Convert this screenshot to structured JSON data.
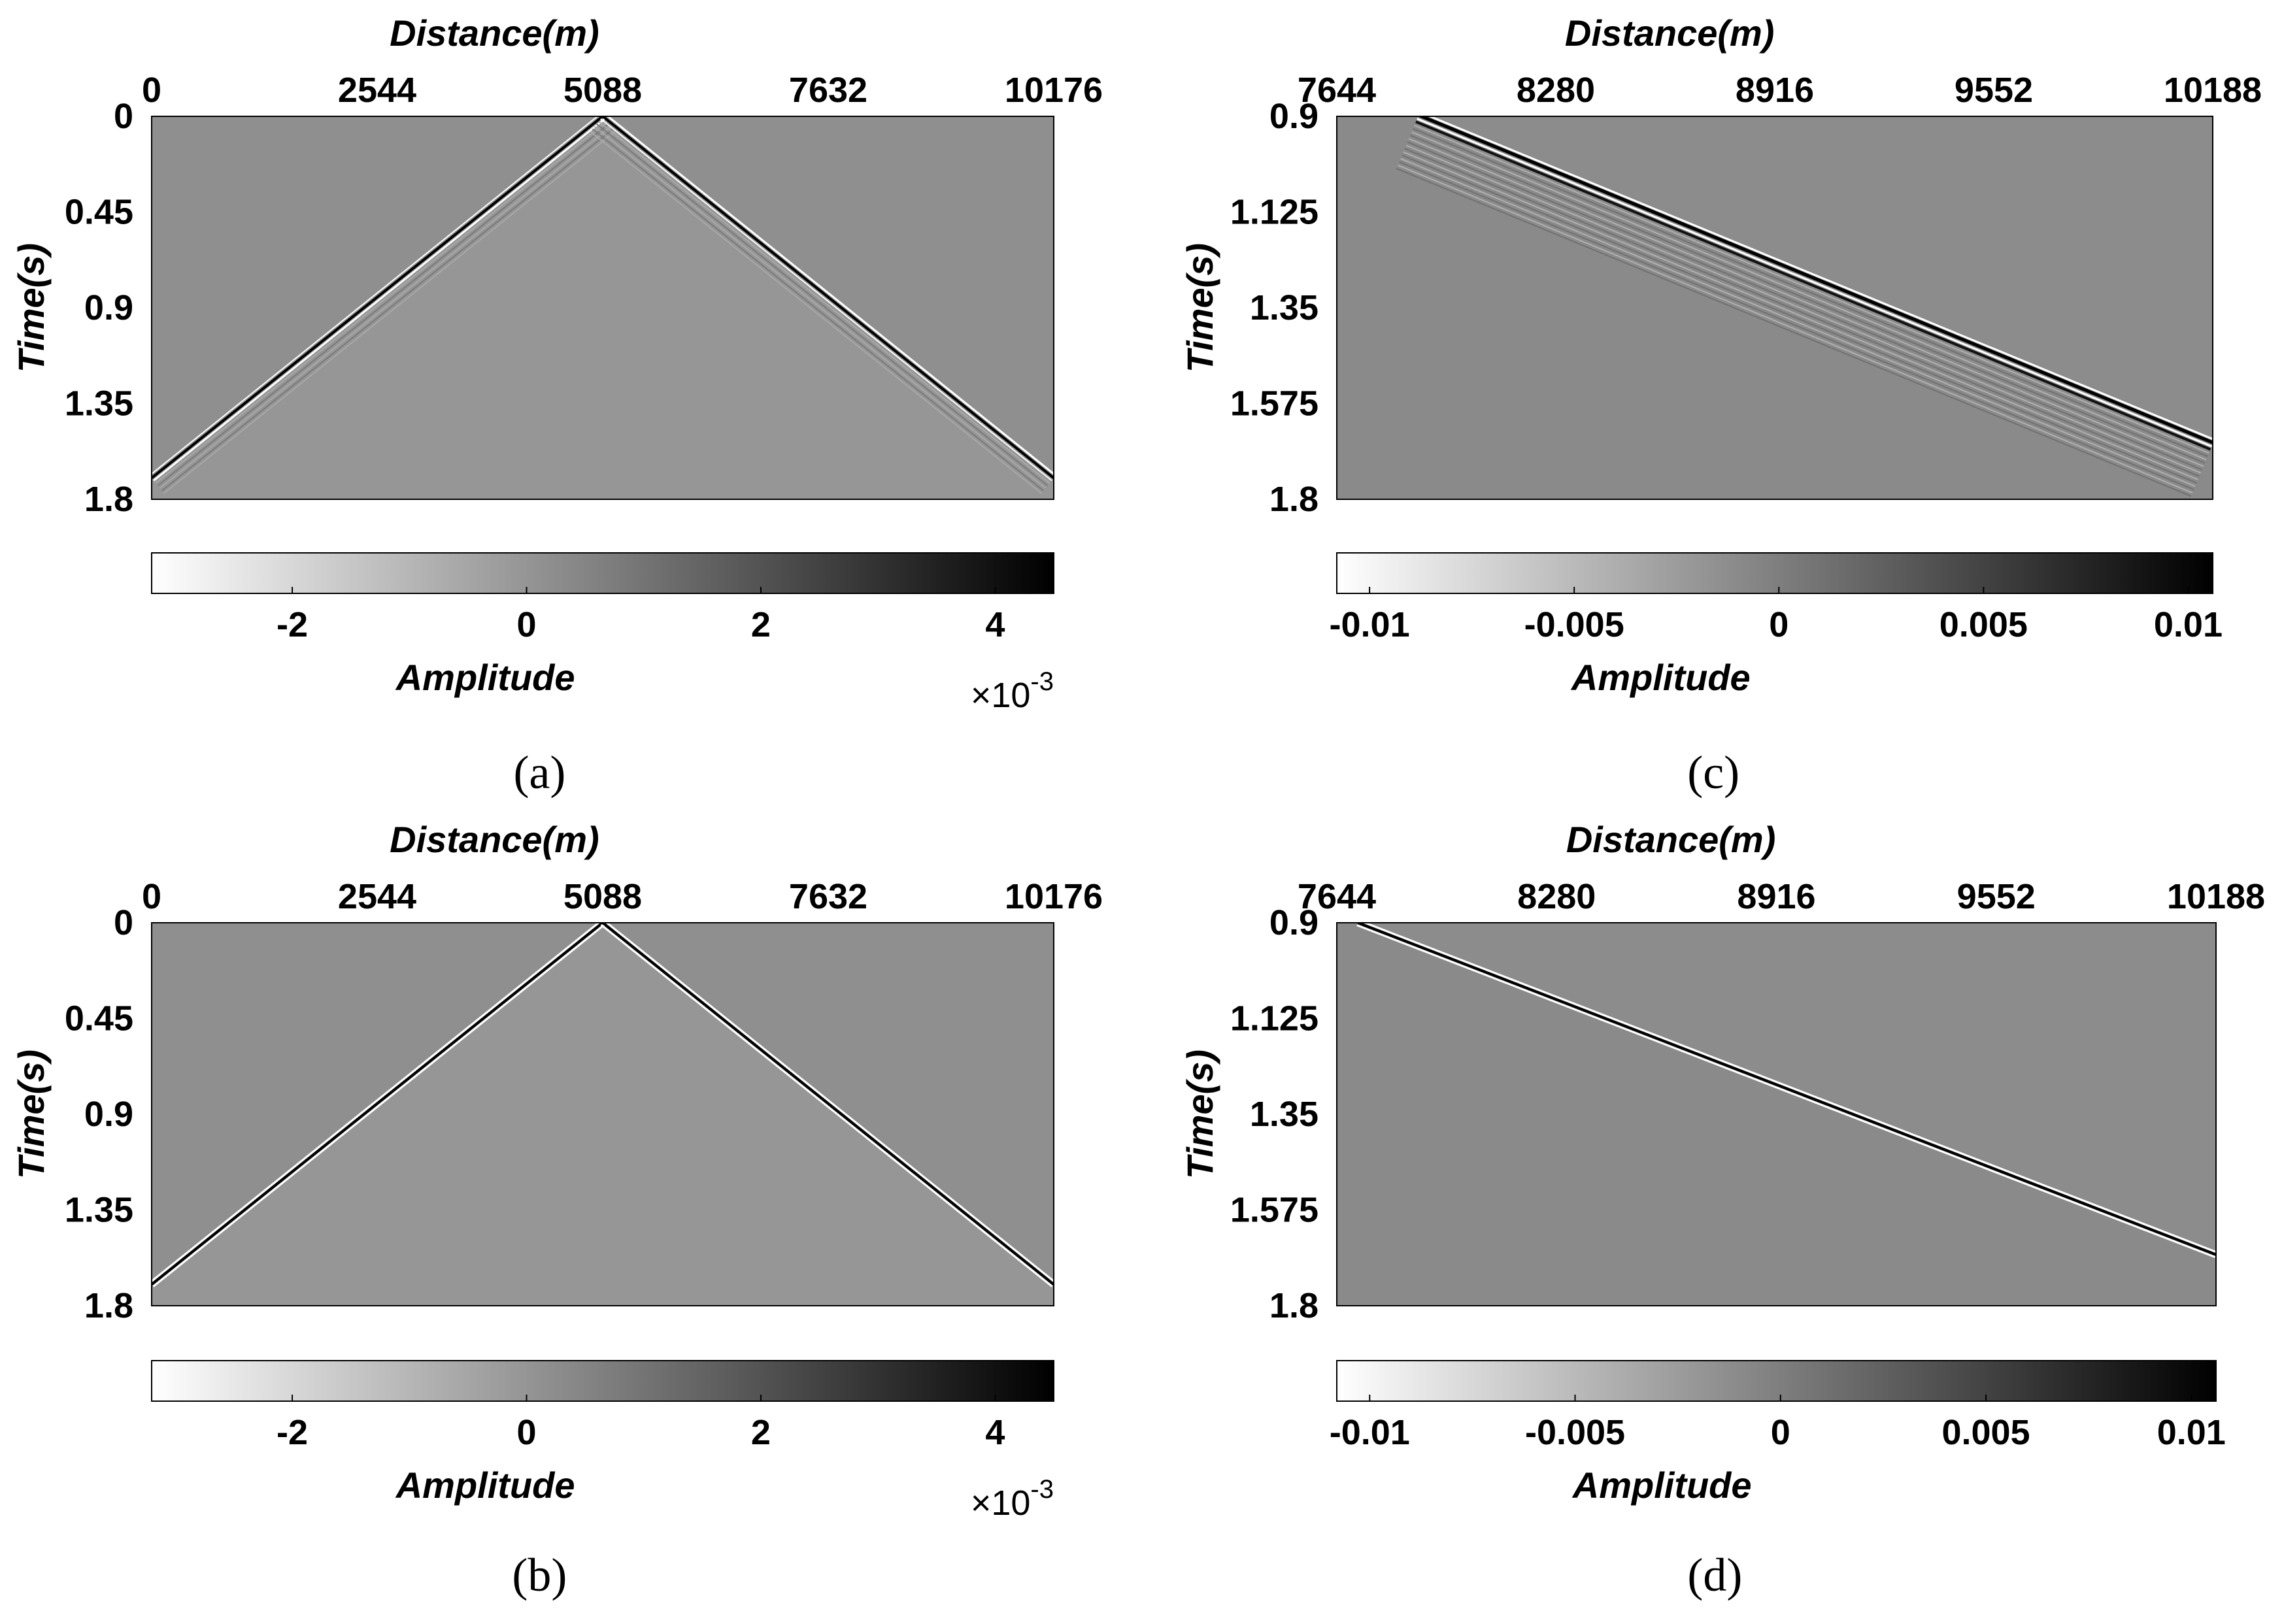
{
  "figure": {
    "background": "#ffffff"
  },
  "chart_data": [
    {
      "id": "a",
      "type": "heatmap",
      "caption": "(a)",
      "xlabel": "Distance(m)",
      "ylabel": "Time(s)",
      "xticks": [
        "0",
        "2544",
        "5088",
        "7632",
        "10176"
      ],
      "yticks": [
        "0",
        "0.45",
        "0.9",
        "1.35",
        "1.8"
      ],
      "xlim": [
        0,
        10176
      ],
      "ylim": [
        0,
        1.8
      ],
      "background_color": "#8f8f8f",
      "lower_region_color": "#969696",
      "events": [
        {
          "name": "direct-wave-left",
          "points": [
            [
              5088,
              0
            ],
            [
              0,
              1.7
            ]
          ]
        },
        {
          "name": "direct-wave-right",
          "points": [
            [
              5088,
              0
            ],
            [
              10176,
              1.7
            ]
          ]
        }
      ],
      "colorbar": {
        "label": "Amplitude",
        "range": [
          -0.0032,
          0.0045
        ],
        "ticks": [
          "-2",
          "0",
          "2",
          "4"
        ],
        "tick_values": [
          -0.002,
          0,
          0.002,
          0.004
        ],
        "multiplier": "×10",
        "multiplier_exponent": "-3"
      }
    },
    {
      "id": "b",
      "type": "heatmap",
      "caption": "(b)",
      "xlabel": "Distance(m)",
      "ylabel": "Time(s)",
      "xticks": [
        "0",
        "2544",
        "5088",
        "7632",
        "10176"
      ],
      "yticks": [
        "0",
        "0.45",
        "0.9",
        "1.35",
        "1.8"
      ],
      "xlim": [
        0,
        10176
      ],
      "ylim": [
        0,
        1.8
      ],
      "background_color": "#8f8f8f",
      "lower_region_color": "#969696",
      "events": [
        {
          "name": "direct-wave-left",
          "points": [
            [
              5088,
              0
            ],
            [
              0,
              1.7
            ]
          ]
        },
        {
          "name": "direct-wave-right",
          "points": [
            [
              5088,
              0
            ],
            [
              10176,
              1.7
            ]
          ]
        }
      ],
      "colorbar": {
        "label": "Amplitude",
        "range": [
          -0.0032,
          0.0045
        ],
        "ticks": [
          "-2",
          "0",
          "2",
          "4"
        ],
        "tick_values": [
          -0.002,
          0,
          0.002,
          0.004
        ],
        "multiplier": "×10",
        "multiplier_exponent": "-3"
      }
    },
    {
      "id": "c",
      "type": "heatmap",
      "caption": "(c)",
      "xlabel": "Distance(m)",
      "ylabel": "Time(s)",
      "xticks": [
        "7644",
        "8280",
        "8916",
        "9552",
        "10188"
      ],
      "yticks": [
        "0.9",
        "1.125",
        "1.35",
        "1.575",
        "1.8"
      ],
      "xlim": [
        7644,
        10188
      ],
      "ylim": [
        0.9,
        1.8
      ],
      "background_color": "#8c8c8c",
      "lower_region_color": "#8a8a8a",
      "events": [
        {
          "name": "direct-wave",
          "points": [
            [
              7880,
              0.9
            ],
            [
              10188,
              1.67
            ]
          ]
        }
      ],
      "colorbar": {
        "label": "Amplitude",
        "range": [
          -0.0108,
          0.0106
        ],
        "ticks": [
          "-0.01",
          "-0.005",
          "0",
          "0.005",
          "0.01"
        ],
        "tick_values": [
          -0.01,
          -0.005,
          0,
          0.005,
          0.01
        ]
      }
    },
    {
      "id": "d",
      "type": "heatmap",
      "caption": "(d)",
      "xlabel": "Distance(m)",
      "ylabel": "Time(s)",
      "xticks": [
        "7644",
        "8280",
        "8916",
        "9552",
        "10188"
      ],
      "yticks": [
        "0.9",
        "1.125",
        "1.35",
        "1.575",
        "1.8"
      ],
      "xlim": [
        7644,
        10188
      ],
      "ylim": [
        0.9,
        1.8
      ],
      "background_color": "#8c8c8c",
      "lower_region_color": "#8a8a8a",
      "events": [
        {
          "name": "direct-wave",
          "points": [
            [
              7705,
              0.9
            ],
            [
              10188,
              1.68
            ]
          ]
        }
      ],
      "colorbar": {
        "label": "Amplitude",
        "range": [
          -0.0108,
          0.0106
        ],
        "ticks": [
          "-0.01",
          "-0.005",
          "0",
          "0.005",
          "0.01"
        ],
        "tick_values": [
          -0.01,
          -0.005,
          0,
          0.005,
          0.01
        ]
      }
    }
  ]
}
